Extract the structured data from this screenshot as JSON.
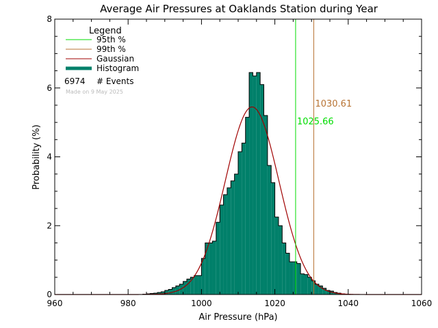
{
  "chart_data": {
    "type": "histogram",
    "title": "Average Air Pressures at Oaklands Station during Year",
    "xlabel": "Air Pressure (hPa)",
    "ylabel": "Probability (%)",
    "xlim": [
      960,
      1060
    ],
    "ylim": [
      0,
      8
    ],
    "x_ticks": [
      "960",
      "980",
      "1000",
      "1020",
      "1040",
      "1060"
    ],
    "y_ticks": [
      "0",
      "2",
      "4",
      "6",
      "8"
    ],
    "grid": false,
    "legend": {
      "title": "Legend",
      "placement": "top-left",
      "items": [
        {
          "label": "95th %",
          "color": "#00dd00"
        },
        {
          "label": "99th %",
          "color": "#b87333"
        },
        {
          "label": "Gaussian",
          "color": "#a00000"
        },
        {
          "label": "Histogram",
          "color": "#00806a"
        }
      ],
      "events_count": "6974",
      "events_label": "# Events",
      "made_on": "Made on 9 May 2025"
    },
    "histogram": {
      "bin_width": 1,
      "bins_x": [
        984,
        985,
        986,
        987,
        988,
        989,
        990,
        991,
        992,
        993,
        994,
        995,
        996,
        997,
        998,
        999,
        1000,
        1001,
        1002,
        1003,
        1004,
        1005,
        1006,
        1007,
        1008,
        1009,
        1010,
        1011,
        1012,
        1013,
        1014,
        1015,
        1016,
        1017,
        1018,
        1019,
        1020,
        1021,
        1022,
        1023,
        1024,
        1025,
        1026,
        1027,
        1028,
        1029,
        1030,
        1031,
        1032,
        1033,
        1034,
        1035,
        1036,
        1037,
        1038,
        1039
      ],
      "values": [
        0.01,
        0.02,
        0.03,
        0.04,
        0.06,
        0.08,
        0.12,
        0.15,
        0.2,
        0.25,
        0.3,
        0.38,
        0.45,
        0.5,
        0.55,
        0.55,
        1.05,
        1.5,
        1.5,
        1.55,
        2.1,
        2.6,
        2.9,
        3.1,
        3.3,
        3.5,
        4.15,
        4.4,
        5.15,
        6.45,
        6.35,
        6.45,
        6.1,
        5.2,
        3.75,
        3.25,
        2.25,
        2.0,
        1.5,
        1.2,
        0.95,
        0.95,
        0.9,
        0.6,
        0.58,
        0.5,
        0.4,
        0.3,
        0.25,
        0.18,
        0.12,
        0.1,
        0.06,
        0.04,
        0.02,
        0.01
      ]
    },
    "gaussian": {
      "mean": 1013.8,
      "sigma": 7.3,
      "peak": 5.45
    },
    "percentiles": [
      {
        "name": "95th %",
        "value": 1025.66,
        "label": "1025.66",
        "color": "#00dd00"
      },
      {
        "name": "99th %",
        "value": 1030.61,
        "label": "1030.61",
        "color": "#b87333"
      }
    ],
    "colors": {
      "histogram_fill": "#00806a",
      "gaussian": "#a00000",
      "outline": "#000000"
    }
  }
}
